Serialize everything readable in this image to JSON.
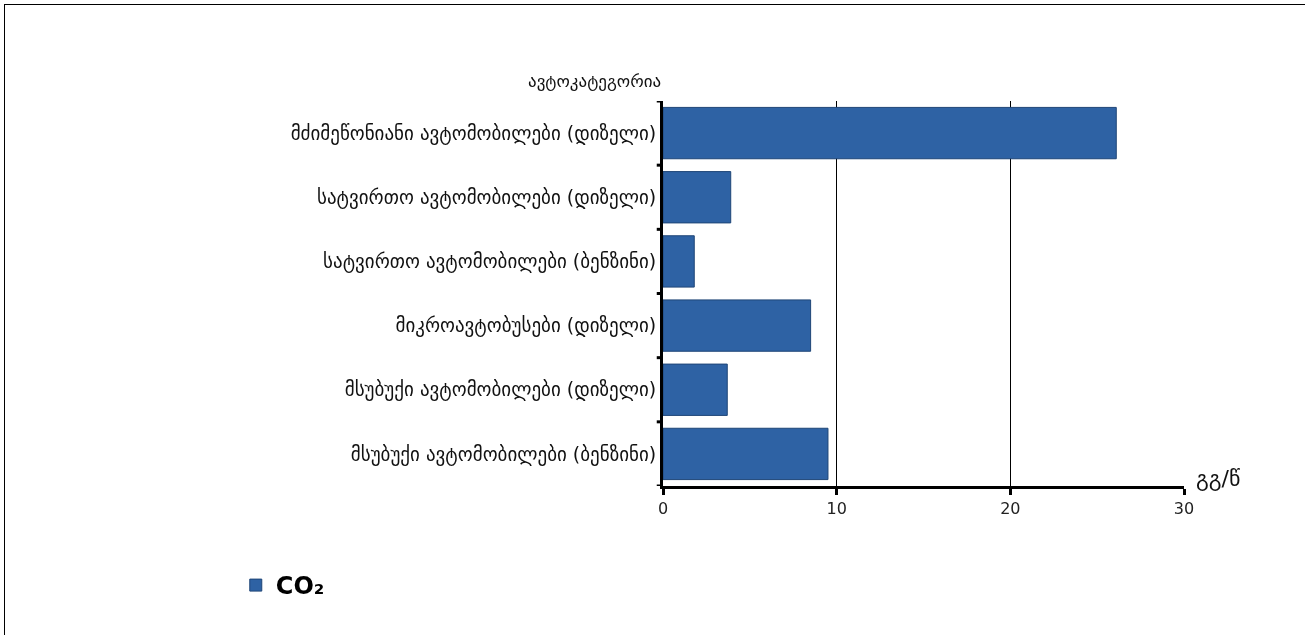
{
  "chart_data": {
    "type": "bar",
    "orientation": "horizontal",
    "ylabel": "ავტოკატეგორია",
    "xlabel": "გგ/წ",
    "categories": [
      "მძიმეწონიანი ავტომობილები (დიზელი)",
      "სატვირთო ავტომობილები (დიზელი)",
      "სატვირთო ავტომობილები (ბენზინი)",
      "მიკროავტობუსები (დიზელი)",
      "მსუბუქი ავტომობილები (დიზელი)",
      "მსუბუქი ავტომობილები (ბენზინი)"
    ],
    "series": [
      {
        "name": "CO₂",
        "color": "#2e62a4",
        "values": [
          26.1,
          3.9,
          1.8,
          8.5,
          3.7,
          9.5
        ]
      }
    ],
    "xlim": [
      0,
      30
    ],
    "xticks": [
      0,
      10,
      20,
      30
    ],
    "grid": "x",
    "legend": "bottom left"
  }
}
